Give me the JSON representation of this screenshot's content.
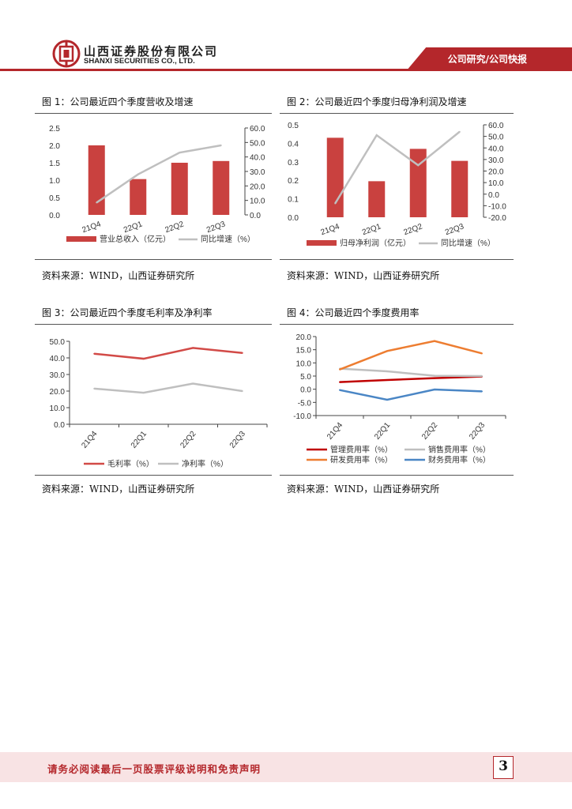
{
  "header": {
    "company_cn": "山西证券股份有限公司",
    "company_en": "SHANXI SECURITIES CO., LTD.",
    "section": "公司研究/公司快报"
  },
  "figures": [
    {
      "title": "图 1：公司最近四个季度营收及增速",
      "source": "资料来源：WIND，山西证券研究所",
      "chart_data": {
        "type": "bar",
        "categories": [
          "21Q4",
          "22Q1",
          "22Q2",
          "22Q3"
        ],
        "series": [
          {
            "name": "营业总收入（亿元）",
            "kind": "bar",
            "axis": "left",
            "values": [
              2.0,
              1.03,
              1.5,
              1.55
            ]
          },
          {
            "name": "同比增速（%）",
            "kind": "line",
            "axis": "right",
            "values": [
              8.5,
              28.0,
              43.0,
              48.0
            ]
          }
        ],
        "y_left": {
          "min": 0,
          "max": 2.5,
          "step": 0.5,
          "decimals": 1
        },
        "y_right": {
          "min": 0,
          "max": 60,
          "step": 10,
          "decimals": 1
        },
        "legend_position": "bottom",
        "colors": {
          "bar": "#c9413f",
          "line": "#bfbfbf"
        }
      }
    },
    {
      "title": "图 2：公司最近四个季度归母净利润及增速",
      "source": "资料来源：WIND，山西证券研究所",
      "chart_data": {
        "type": "bar",
        "categories": [
          "21Q4",
          "22Q1",
          "22Q2",
          "22Q3"
        ],
        "series": [
          {
            "name": "归母净利润（亿元）",
            "kind": "bar",
            "axis": "left",
            "values": [
              0.43,
              0.195,
              0.37,
              0.305
            ]
          },
          {
            "name": "同比增速（%）",
            "kind": "line",
            "axis": "right",
            "values": [
              -8.0,
              51.0,
              25.0,
              54.0
            ]
          }
        ],
        "y_left": {
          "min": 0,
          "max": 0.5,
          "step": 0.1,
          "decimals": 1
        },
        "y_right": {
          "min": -20,
          "max": 60,
          "step": 10,
          "decimals": 1
        },
        "legend_position": "bottom",
        "colors": {
          "bar": "#c9413f",
          "line": "#bfbfbf"
        }
      }
    },
    {
      "title": "图 3：公司最近四个季度毛利率及净利率",
      "source": "资料来源：WIND，山西证券研究所",
      "chart_data": {
        "type": "line",
        "categories": [
          "21Q4",
          "22Q1",
          "22Q2",
          "22Q3"
        ],
        "series": [
          {
            "name": "毛利率（%）",
            "values": [
              42.5,
              39.5,
              46.0,
              43.0
            ],
            "color": "#d24a47"
          },
          {
            "name": "净利率（%）",
            "values": [
              21.5,
              19.0,
              24.5,
              20.0
            ],
            "color": "#bfbfbf"
          }
        ],
        "y": {
          "min": 0,
          "max": 50,
          "step": 10,
          "decimals": 1
        },
        "legend_position": "bottom"
      }
    },
    {
      "title": "图 4：公司最近四个季度费用率",
      "source": "资料来源：WIND，山西证券研究所",
      "chart_data": {
        "type": "line",
        "categories": [
          "21Q4",
          "22Q1",
          "22Q2",
          "22Q3"
        ],
        "series": [
          {
            "name": "管理费用率（%）",
            "values": [
              2.7,
              3.5,
              4.2,
              4.8
            ],
            "color": "#c00000"
          },
          {
            "name": "销售费用率（%）",
            "values": [
              7.8,
              6.8,
              5.1,
              5.0
            ],
            "color": "#bfbfbf"
          },
          {
            "name": "研发费用率（%）",
            "values": [
              7.5,
              14.5,
              18.3,
              13.6
            ],
            "color": "#ed7d31"
          },
          {
            "name": "财务费用率（%）",
            "values": [
              -0.3,
              -4.0,
              -0.1,
              -0.8
            ],
            "color": "#4a86c5"
          }
        ],
        "y": {
          "min": -10,
          "max": 20,
          "step": 5,
          "decimals": 1
        },
        "legend_position": "bottom"
      }
    }
  ],
  "footer": {
    "disclaimer": "请务必阅读最后一页股票评级说明和免责声明",
    "page_number": "3"
  }
}
